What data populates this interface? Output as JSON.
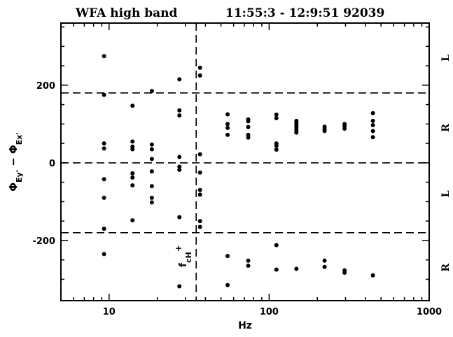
{
  "chart_data": {
    "type": "scatter",
    "title": "WFA high band",
    "subtitle": "11:55:3 - 12:9:51 92039",
    "xlabel": "Hz",
    "ylabel": {
      "main": "Φ",
      "sub1": "Ey'",
      "mid": " − Φ",
      "sub2": "Ex'"
    },
    "xscale": "log",
    "xlim": [
      5,
      1000
    ],
    "ylim": [
      -355,
      360
    ],
    "x_ticks": [
      10,
      100,
      1000
    ],
    "x_tick_labels": [
      "10",
      "100",
      "1000"
    ],
    "y_ticks": [
      -200,
      0,
      200
    ],
    "y_tick_labels": [
      "-200",
      "0",
      "200"
    ],
    "reference_lines": {
      "horizontal": [
        180,
        0,
        -180
      ],
      "vertical": [
        35
      ]
    },
    "vertical_line_label": {
      "base": "f",
      "sub": "cH",
      "sup": "+"
    },
    "side_labels": [
      {
        "text": "L",
        "y": 270
      },
      {
        "text": "R",
        "y": 90
      },
      {
        "text": "L",
        "y": -80
      },
      {
        "text": "R",
        "y": -270
      }
    ],
    "points": [
      {
        "x": 9.3,
        "y": 275
      },
      {
        "x": 9.3,
        "y": 175
      },
      {
        "x": 9.3,
        "y": 50
      },
      {
        "x": 9.3,
        "y": 37
      },
      {
        "x": 9.3,
        "y": -42
      },
      {
        "x": 9.3,
        "y": -90
      },
      {
        "x": 9.3,
        "y": -170
      },
      {
        "x": 9.3,
        "y": -235
      },
      {
        "x": 14,
        "y": 147
      },
      {
        "x": 14,
        "y": 55
      },
      {
        "x": 14,
        "y": 42
      },
      {
        "x": 14,
        "y": 35
      },
      {
        "x": 14,
        "y": -27
      },
      {
        "x": 14,
        "y": -38
      },
      {
        "x": 14,
        "y": -58
      },
      {
        "x": 14,
        "y": -148
      },
      {
        "x": 18.5,
        "y": 185
      },
      {
        "x": 18.5,
        "y": 47
      },
      {
        "x": 18.5,
        "y": 35
      },
      {
        "x": 18.5,
        "y": 10
      },
      {
        "x": 18.5,
        "y": -22
      },
      {
        "x": 18.5,
        "y": -60
      },
      {
        "x": 18.5,
        "y": -90
      },
      {
        "x": 18.5,
        "y": -102
      },
      {
        "x": 27.5,
        "y": 215
      },
      {
        "x": 27.5,
        "y": 135
      },
      {
        "x": 27.5,
        "y": 122
      },
      {
        "x": 27.5,
        "y": 15
      },
      {
        "x": 27.5,
        "y": -10
      },
      {
        "x": 27.5,
        "y": -18
      },
      {
        "x": 27.5,
        "y": -140
      },
      {
        "x": 27.5,
        "y": -318
      },
      {
        "x": 37,
        "y": 245
      },
      {
        "x": 37,
        "y": 225
      },
      {
        "x": 37,
        "y": 22
      },
      {
        "x": 37,
        "y": -25
      },
      {
        "x": 37,
        "y": -70
      },
      {
        "x": 37,
        "y": -82
      },
      {
        "x": 37,
        "y": -150
      },
      {
        "x": 37,
        "y": -165
      },
      {
        "x": 55,
        "y": 125
      },
      {
        "x": 55,
        "y": 100
      },
      {
        "x": 55,
        "y": 90
      },
      {
        "x": 55,
        "y": 72
      },
      {
        "x": 55,
        "y": -240
      },
      {
        "x": 55,
        "y": -315
      },
      {
        "x": 74,
        "y": 112
      },
      {
        "x": 74,
        "y": 107
      },
      {
        "x": 74,
        "y": 92
      },
      {
        "x": 74,
        "y": 72
      },
      {
        "x": 74,
        "y": 65
      },
      {
        "x": 74,
        "y": -252
      },
      {
        "x": 74,
        "y": -265
      },
      {
        "x": 111,
        "y": 124
      },
      {
        "x": 111,
        "y": 115
      },
      {
        "x": 111,
        "y": 50
      },
      {
        "x": 111,
        "y": 44
      },
      {
        "x": 111,
        "y": 34
      },
      {
        "x": 111,
        "y": -212
      },
      {
        "x": 111,
        "y": -275
      },
      {
        "x": 148,
        "y": 108
      },
      {
        "x": 148,
        "y": 102
      },
      {
        "x": 148,
        "y": 96
      },
      {
        "x": 148,
        "y": 90
      },
      {
        "x": 148,
        "y": 84
      },
      {
        "x": 148,
        "y": 78
      },
      {
        "x": 148,
        "y": -273
      },
      {
        "x": 222,
        "y": 93
      },
      {
        "x": 222,
        "y": 87
      },
      {
        "x": 222,
        "y": 82
      },
      {
        "x": 222,
        "y": -252
      },
      {
        "x": 222,
        "y": -268
      },
      {
        "x": 296,
        "y": 100
      },
      {
        "x": 296,
        "y": 95
      },
      {
        "x": 296,
        "y": 88
      },
      {
        "x": 296,
        "y": -277
      },
      {
        "x": 296,
        "y": -283
      },
      {
        "x": 445,
        "y": 128
      },
      {
        "x": 445,
        "y": 108
      },
      {
        "x": 445,
        "y": 97
      },
      {
        "x": 445,
        "y": 82
      },
      {
        "x": 445,
        "y": 66
      },
      {
        "x": 445,
        "y": -290
      }
    ]
  }
}
